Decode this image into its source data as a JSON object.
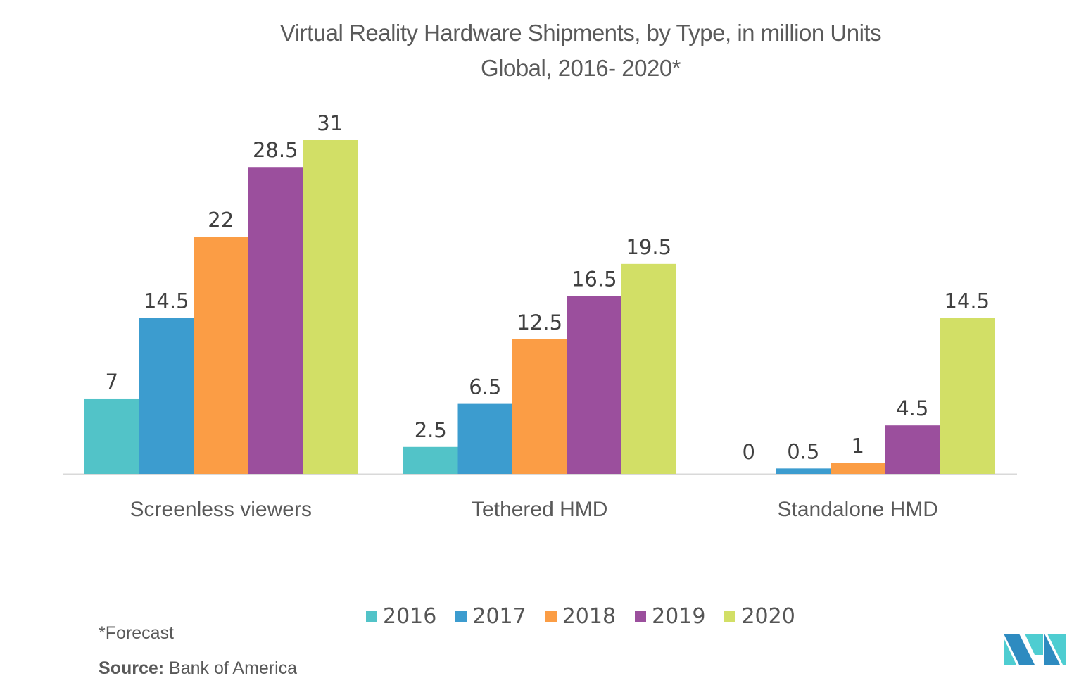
{
  "chart_data": {
    "type": "bar",
    "title": "Virtual Reality Hardware Shipments, by Type, in million Units",
    "subtitle": "Global, 2016- 2020*",
    "xlabel": "",
    "ylabel": "",
    "ylim": [
      0,
      31
    ],
    "grid": false,
    "legend_position": "bottom",
    "categories": [
      "Screenless viewers",
      "Tethered HMD",
      "Standalone HMD"
    ],
    "series": [
      {
        "name": "2016",
        "color": "#52C3C8",
        "values": [
          7,
          2.5,
          0
        ],
        "labels": [
          "7",
          "2.5",
          "0"
        ]
      },
      {
        "name": "2017",
        "color": "#3C9CCF",
        "values": [
          14.5,
          6.5,
          0.5
        ],
        "labels": [
          "14.5",
          "6.5",
          "0.5"
        ]
      },
      {
        "name": "2018",
        "color": "#FB9D45",
        "values": [
          22,
          12.5,
          1
        ],
        "labels": [
          "22",
          "12.5",
          "1"
        ]
      },
      {
        "name": "2019",
        "color": "#9B4F9D",
        "values": [
          28.5,
          16.5,
          4.5
        ],
        "labels": [
          "28.5",
          "16.5",
          "4.5"
        ]
      },
      {
        "name": "2020",
        "color": "#D2DF66",
        "values": [
          31,
          19.5,
          14.5
        ],
        "labels": [
          "31",
          "19.5",
          "14.5"
        ]
      }
    ]
  },
  "footer": {
    "note": "*Forecast",
    "source_label": "Source:",
    "source_value": "Bank of America"
  },
  "logo": {
    "icon": "mordor-intelligence-logo",
    "colors": [
      "#2E8BC0",
      "#4ECDD1"
    ]
  }
}
